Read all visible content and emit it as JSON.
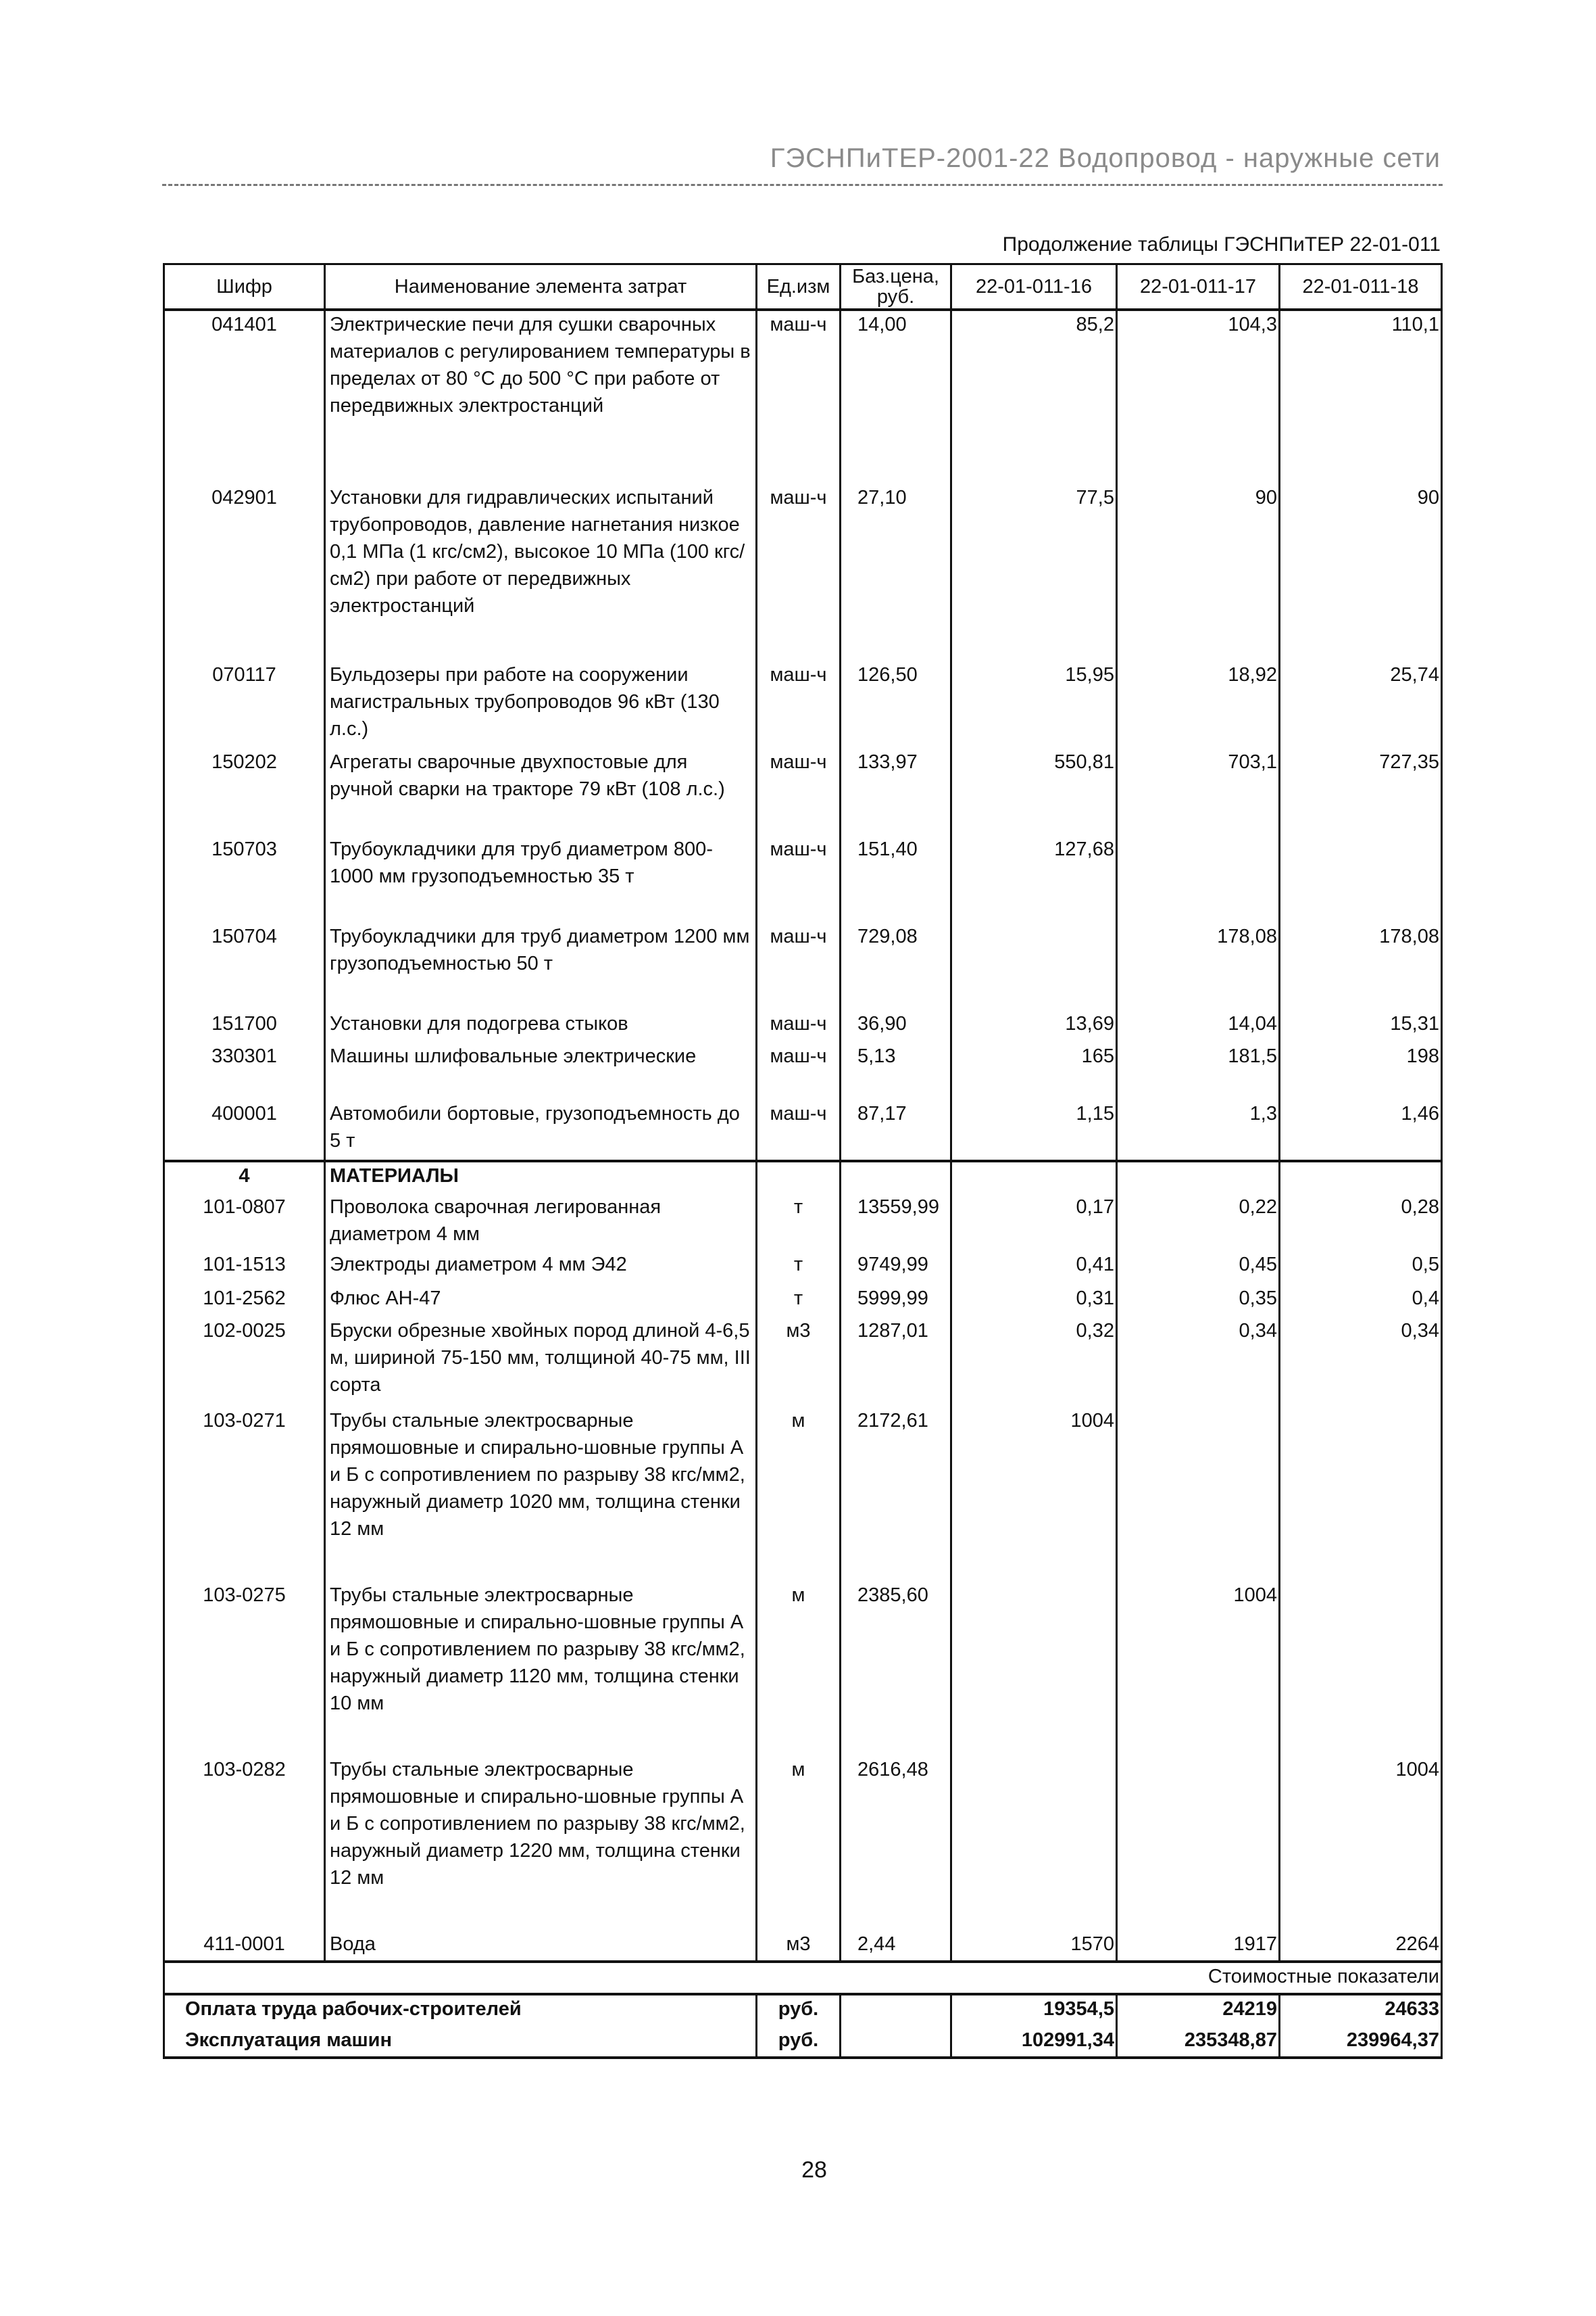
{
  "running_head": "ГЭСНПиТЕР-2001-22 Водопровод - наружные сети",
  "continuation": "Продолжение таблицы ГЭСНПиТЕР 22-01-011",
  "table": {
    "headers": [
      "Шифр",
      "Наименование элемента затрат",
      "Ед.изм",
      "Баз.цена, руб.",
      "22-01-011-16",
      "22-01-011-17",
      "22-01-011-18"
    ],
    "rows": [
      [
        "041401",
        "Электрические печи для сушки сварочных материалов с регулированием температуры в пределах от 80 °С до 500 °С при работе от передвижных электростанций",
        "маш-ч",
        "14,00",
        "85,2",
        "104,3",
        "110,1"
      ],
      [
        "042901",
        "Установки для гидравлических испытаний трубопроводов, давление нагнетания низкое 0,1 МПа (1 кгс/см2), высокое 10 МПа (100 кгс/см2) при работе от передвижных электростанций",
        "маш-ч",
        "27,10",
        "77,5",
        "90",
        "90"
      ],
      [
        "070117",
        "Бульдозеры при работе на сооружении магистральных трубопроводов 96 кВт (130 л.с.)",
        "маш-ч",
        "126,50",
        "15,95",
        "18,92",
        "25,74"
      ],
      [
        "150202",
        "Агрегаты сварочные двухпостовые для ручной сварки на тракторе 79 кВт (108 л.с.)",
        "маш-ч",
        "133,97",
        "550,81",
        "703,1",
        "727,35"
      ],
      [
        "150703",
        "Трубоукладчики для труб диаметром 800-1000 мм грузоподъемностью 35 т",
        "маш-ч",
        "151,40",
        "127,68",
        "",
        ""
      ],
      [
        "150704",
        "Трубоукладчики для труб диаметром 1200 мм грузоподъемностью 50 т",
        "маш-ч",
        "729,08",
        "",
        "178,08",
        "178,08"
      ],
      [
        "151700",
        "Установки для подогрева стыков",
        "маш-ч",
        "36,90",
        "13,69",
        "14,04",
        "15,31"
      ],
      [
        "330301",
        "Машины шлифовальные электрические",
        "маш-ч",
        "5,13",
        "165",
        "181,5",
        "198"
      ],
      [
        "400001",
        "Автомобили бортовые, грузоподъемность до 5 т",
        "маш-ч",
        "87,17",
        "1,15",
        "1,3",
        "1,46"
      ],
      [
        "4",
        "МАТЕРИАЛЫ",
        "",
        "",
        "",
        "",
        ""
      ],
      [
        "101-0807",
        "Проволока сварочная легированная диаметром 4 мм",
        "т",
        "13559,99",
        "0,17",
        "0,22",
        "0,28"
      ],
      [
        "101-1513",
        "Электроды диаметром 4 мм Э42",
        "т",
        "9749,99",
        "0,41",
        "0,45",
        "0,5"
      ],
      [
        "101-2562",
        "Флюс АН-47",
        "т",
        "5999,99",
        "0,31",
        "0,35",
        "0,4"
      ],
      [
        "102-0025",
        "Бруски обрезные хвойных пород длиной 4-6,5 м, шириной 75-150 мм, толщиной 40-75 мм, III сорта",
        "м3",
        "1287,01",
        "0,32",
        "0,34",
        "0,34"
      ],
      [
        "103-0271",
        "Трубы стальные электросварные прямошовные и спирально-шовные группы А и Б с сопротивлением по разрыву 38 кгс/мм2, наружный диаметр 1020 мм, толщина стенки 12 мм",
        "м",
        "2172,61",
        "1004",
        "",
        ""
      ],
      [
        "103-0275",
        "Трубы стальные электросварные прямошовные и спирально-шовные группы А и Б с сопротивлением по разрыву 38 кгс/мм2, наружный диаметр 1120 мм, толщина стенки 10 мм",
        "м",
        "2385,60",
        "",
        "1004",
        ""
      ],
      [
        "103-0282",
        "Трубы стальные электросварные прямошовные и спирально-шовные группы А и Б с сопротивлением по разрыву 38 кгс/мм2, наружный диаметр 1220 мм, толщина стенки 12 мм",
        "м",
        "2616,48",
        "",
        "",
        "1004"
      ],
      [
        "411-0001",
        "Вода",
        "м3",
        "2,44",
        "1570",
        "1917",
        "2264"
      ]
    ],
    "cost_header": "Стоимостные показатели",
    "cost_rows": [
      [
        "Оплата труда рабочих-строителей",
        "руб.",
        "",
        "19354,5",
        "24219",
        "24633"
      ],
      [
        "Эксплуатация машин",
        "руб.",
        "",
        "102991,34",
        "235348,87",
        "239964,37"
      ]
    ]
  },
  "page_number": "28"
}
